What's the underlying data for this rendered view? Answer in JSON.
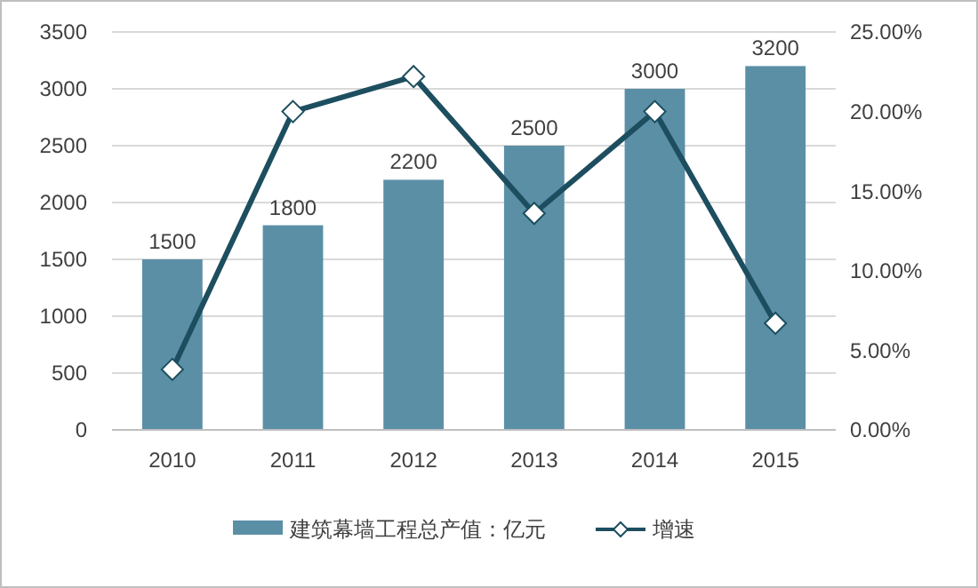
{
  "chart_data": {
    "type": "bar",
    "categories": [
      "2010",
      "2011",
      "2012",
      "2013",
      "2014",
      "2015"
    ],
    "series": [
      {
        "name": "建筑幕墙工程总产值：亿元",
        "color": "#5b8fa6",
        "values": [
          1500,
          1800,
          2200,
          2500,
          3000,
          3200
        ],
        "value_labels": [
          "1500",
          "1800",
          "2200",
          "2500",
          "3000",
          "3200"
        ]
      },
      {
        "name": "增速",
        "color": "#1d4e5f",
        "values": [
          3.8,
          20.0,
          22.2,
          13.6,
          20.0,
          6.7
        ],
        "type": "line",
        "axis": "y2"
      }
    ],
    "ylim": [
      0,
      3500
    ],
    "yticks": [
      0,
      500,
      1000,
      1500,
      2000,
      2500,
      3000,
      3500
    ],
    "y2lim": [
      0,
      25
    ],
    "y2ticks": [
      {
        "value": 0,
        "label": "0.00%"
      },
      {
        "value": 5,
        "label": "5.00%"
      },
      {
        "value": 10,
        "label": "10.00%"
      },
      {
        "value": 15,
        "label": "15.00%"
      },
      {
        "value": 20,
        "label": "20.00%"
      },
      {
        "value": 25,
        "label": "25.00%"
      }
    ],
    "grid": "y",
    "legend": "bottom",
    "marker": "diamond",
    "line_style": "solid"
  }
}
